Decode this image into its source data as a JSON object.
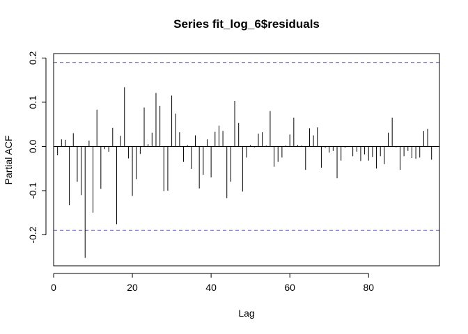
{
  "chart_data": {
    "type": "bar",
    "title": "Series  fit_log_6$residuals",
    "xlabel": "Lag",
    "ylabel": "Partial ACF",
    "xlim": [
      0,
      98
    ],
    "ylim": [
      -0.27,
      0.21
    ],
    "xticks": [
      0,
      20,
      40,
      60,
      80
    ],
    "yticks": [
      -0.2,
      -0.1,
      0.0,
      0.1,
      0.2
    ],
    "ytick_labels": [
      "-0.2",
      "-0.1",
      "0.0",
      "0.1",
      "0.2"
    ],
    "confidence_bound": 0.19,
    "confidence_color": "#5a5aff",
    "grid": false,
    "lags": [
      1,
      2,
      3,
      4,
      5,
      6,
      7,
      8,
      9,
      10,
      11,
      12,
      13,
      14,
      15,
      16,
      17,
      18,
      19,
      20,
      21,
      22,
      23,
      24,
      25,
      26,
      27,
      28,
      29,
      30,
      31,
      32,
      33,
      34,
      35,
      36,
      37,
      38,
      39,
      40,
      41,
      42,
      43,
      44,
      45,
      46,
      47,
      48,
      49,
      50,
      51,
      52,
      53,
      54,
      55,
      56,
      57,
      58,
      59,
      60,
      61,
      62,
      63,
      64,
      65,
      66,
      67,
      68,
      69,
      70,
      71,
      72,
      73,
      74,
      75,
      76,
      77,
      78,
      79,
      80,
      81,
      82,
      83,
      84,
      85,
      86,
      87,
      88,
      89,
      90,
      91,
      92,
      93,
      94,
      95,
      96
    ],
    "values": [
      -0.02,
      0.016,
      0.015,
      -0.133,
      0.03,
      -0.08,
      -0.11,
      -0.252,
      0.013,
      -0.15,
      0.083,
      -0.096,
      -0.006,
      -0.012,
      0.042,
      -0.176,
      0.024,
      0.134,
      -0.027,
      -0.112,
      -0.074,
      -0.017,
      0.088,
      0.005,
      0.031,
      0.121,
      0.092,
      -0.101,
      -0.1,
      0.115,
      0.074,
      0.032,
      -0.035,
      0.003,
      -0.051,
      0.025,
      -0.095,
      -0.064,
      0.016,
      -0.07,
      0.033,
      0.047,
      0.035,
      -0.117,
      -0.08,
      0.103,
      0.053,
      -0.102,
      -0.025,
      0.003,
      -0.002,
      0.029,
      0.032,
      0.002,
      0.08,
      -0.046,
      -0.035,
      -0.025,
      0.002,
      0.027,
      0.065,
      0.003,
      0.002,
      -0.053,
      0.041,
      0.025,
      0.043,
      -0.048,
      -0.003,
      -0.014,
      -0.01,
      -0.072,
      -0.032,
      -0.003,
      0.0,
      -0.022,
      -0.012,
      -0.033,
      -0.018,
      -0.032,
      -0.024,
      -0.05,
      -0.022,
      -0.04,
      0.031,
      0.065,
      -0.002,
      -0.053,
      -0.022,
      -0.01,
      -0.026,
      -0.028,
      -0.025,
      0.035,
      0.04,
      -0.03
    ]
  }
}
